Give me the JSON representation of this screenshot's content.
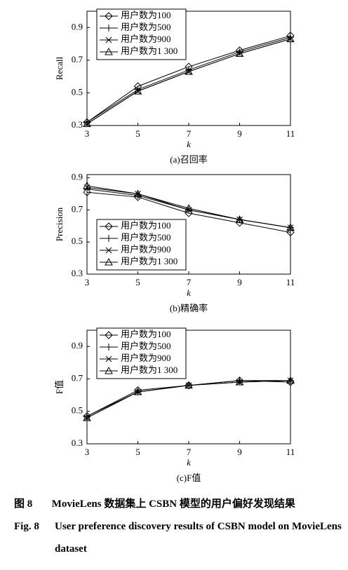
{
  "chart_data": [
    {
      "type": "line",
      "title": "(a)召回率",
      "x_label": "k",
      "y_label": "Recall",
      "x": [
        3,
        5,
        7,
        9,
        11
      ],
      "xlim": [
        3,
        11
      ],
      "xticks": [
        3,
        5,
        7,
        9,
        11
      ],
      "ylim": [
        0.3,
        1.0
      ],
      "yticks": [
        0.3,
        0.5,
        0.7,
        0.9
      ],
      "legend": "upper left",
      "series": [
        {
          "name": "用户数为100",
          "color": "#000000",
          "marker": "diamond",
          "values": [
            0.32,
            0.54,
            0.66,
            0.76,
            0.85
          ]
        },
        {
          "name": "用户数为500",
          "color": "#000000",
          "marker": "plus",
          "values": [
            0.32,
            0.52,
            0.64,
            0.75,
            0.84
          ]
        },
        {
          "name": "用户数为900",
          "color": "#000000",
          "marker": "x",
          "values": [
            0.31,
            0.51,
            0.63,
            0.74,
            0.83
          ]
        },
        {
          "name": "用户数为1 300",
          "color": "#000000",
          "marker": "triangle",
          "values": [
            0.31,
            0.51,
            0.63,
            0.74,
            0.83
          ]
        }
      ]
    },
    {
      "type": "line",
      "title": "(b)精确率",
      "x_label": "k",
      "y_label": "Precision",
      "x": [
        3,
        5,
        7,
        9,
        11
      ],
      "xlim": [
        3,
        11
      ],
      "xticks": [
        3,
        5,
        7,
        9,
        11
      ],
      "ylim": [
        0.3,
        0.92
      ],
      "yticks": [
        0.3,
        0.5,
        0.7,
        0.9
      ],
      "legend": "lower left",
      "series": [
        {
          "name": "用户数为100",
          "color": "#000000",
          "marker": "diamond",
          "values": [
            0.81,
            0.78,
            0.68,
            0.62,
            0.56
          ]
        },
        {
          "name": "用户数为500",
          "color": "#000000",
          "marker": "plus",
          "values": [
            0.83,
            0.79,
            0.7,
            0.64,
            0.59
          ]
        },
        {
          "name": "用户数为900",
          "color": "#000000",
          "marker": "x",
          "values": [
            0.84,
            0.8,
            0.7,
            0.64,
            0.59
          ]
        },
        {
          "name": "用户数为1 300",
          "color": "#000000",
          "marker": "triangle",
          "values": [
            0.85,
            0.8,
            0.71,
            0.64,
            0.59
          ]
        }
      ]
    },
    {
      "type": "line",
      "title": "(c)F值",
      "x_label": "k",
      "y_label": "F值",
      "x": [
        3,
        5,
        7,
        9,
        11
      ],
      "xlim": [
        3,
        11
      ],
      "xticks": [
        3,
        5,
        7,
        9,
        11
      ],
      "ylim": [
        0.3,
        1.0
      ],
      "yticks": [
        0.3,
        0.5,
        0.7,
        0.9
      ],
      "legend": "upper left",
      "series": [
        {
          "name": "用户数为100",
          "color": "#000000",
          "marker": "diamond",
          "values": [
            0.47,
            0.63,
            0.66,
            0.69,
            0.68
          ]
        },
        {
          "name": "用户数为500",
          "color": "#000000",
          "marker": "plus",
          "values": [
            0.47,
            0.62,
            0.66,
            0.69,
            0.69
          ]
        },
        {
          "name": "用户数为900",
          "color": "#000000",
          "marker": "x",
          "values": [
            0.46,
            0.62,
            0.66,
            0.68,
            0.69
          ]
        },
        {
          "name": "用户数为1 300",
          "color": "#000000",
          "marker": "triangle",
          "values": [
            0.46,
            0.62,
            0.66,
            0.68,
            0.69
          ]
        }
      ]
    }
  ],
  "caption": {
    "zh_label": "图 8",
    "zh_text": "MovieLens 数据集上 CSBN 模型的用户偏好发现结果",
    "en_label": "Fig. 8",
    "en_text": "User preference discovery results of CSBN model on MovieLens dataset"
  }
}
